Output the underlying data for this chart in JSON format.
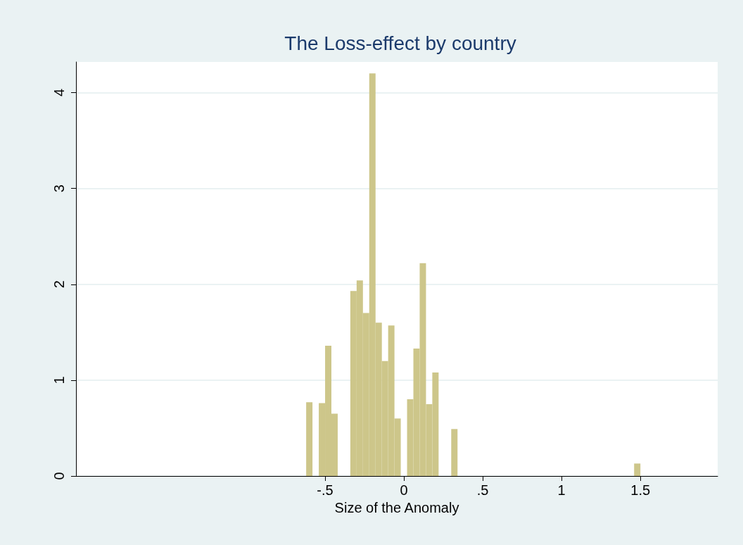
{
  "chart_data": {
    "type": "histogram",
    "title": "The Loss-effect by country",
    "xlabel": "Size of the Anomaly",
    "bins": [
      -0.62,
      -0.58,
      -0.54,
      -0.5,
      -0.46,
      -0.42,
      -0.38,
      -0.34,
      -0.3,
      -0.26,
      -0.22,
      -0.18,
      -0.14,
      -0.1,
      -0.06,
      -0.02,
      0.02,
      0.06,
      0.1,
      0.14,
      0.18,
      0.22,
      0.26,
      0.3,
      0.34,
      0.38,
      0.42,
      0.46,
      0.5,
      0.54,
      0.58,
      0.62,
      0.66,
      0.7,
      0.74,
      0.78,
      0.82,
      0.86,
      0.9,
      0.94,
      0.98,
      1.02,
      1.06,
      1.1,
      1.14,
      1.18,
      1.22,
      1.26,
      1.3,
      1.34,
      1.38,
      1.42,
      1.46,
      1.5
    ],
    "values": [
      0.77,
      0,
      0.76,
      1.36,
      0.65,
      0,
      0,
      1.93,
      2.04,
      1.7,
      4.2,
      1.6,
      1.2,
      1.57,
      0.6,
      0,
      0.8,
      1.33,
      2.22,
      0.75,
      1.08,
      0,
      0,
      0.49,
      0,
      0,
      0,
      0,
      0,
      0,
      0,
      0,
      0,
      0,
      0,
      0,
      0,
      0,
      0,
      0,
      0,
      0,
      0,
      0,
      0,
      0,
      0,
      0,
      0,
      0,
      0,
      0,
      0.13
    ],
    "color": "#cdc68a",
    "xlim": [
      -2.08,
      1.99
    ],
    "xticks": [
      {
        "value": -0.5,
        "label": "-.5"
      },
      0,
      {
        "value": 0.5,
        "label": ".5"
      },
      1,
      1.5
    ],
    "ylim": [
      0,
      4.32
    ],
    "yticks": [
      0,
      1,
      2,
      3,
      4
    ],
    "grid": "y"
  }
}
